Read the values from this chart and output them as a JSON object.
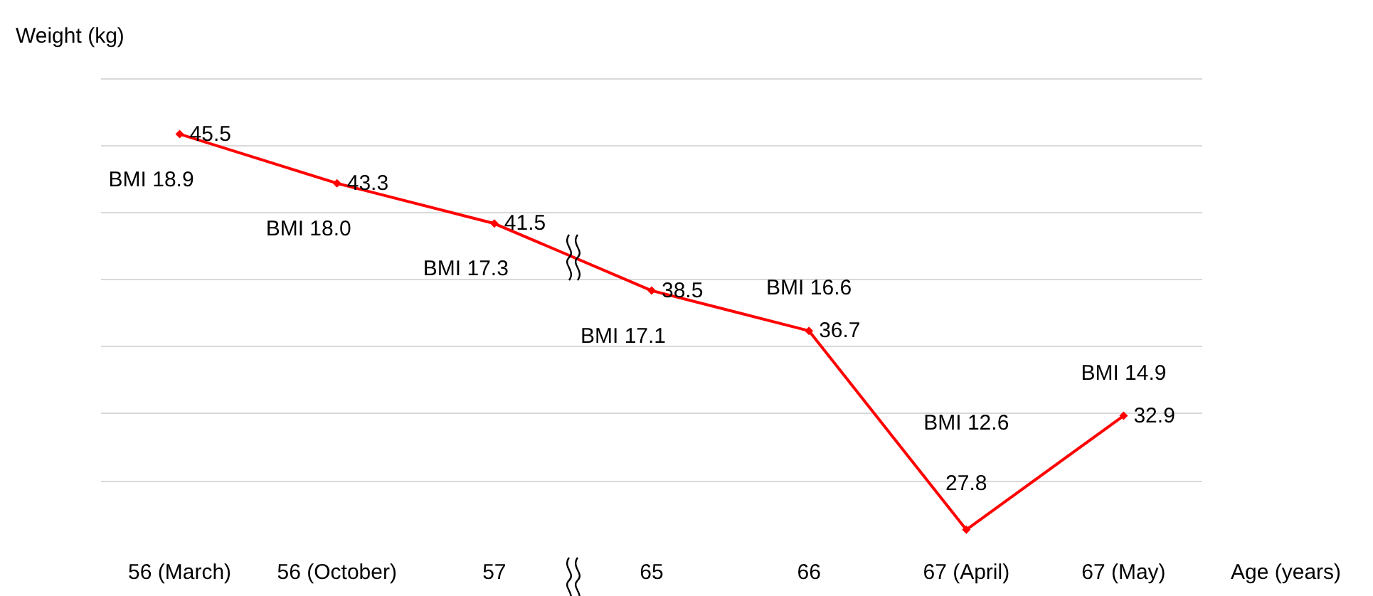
{
  "chart_data": {
    "type": "line",
    "xlabel": "Age (years)",
    "ylabel": "Weight (kg)",
    "categories": [
      "56 (March)",
      "56 (October)",
      "57",
      "65",
      "66",
      "67 (April)",
      "67 (May)"
    ],
    "series": [
      {
        "color": "#ff0000",
        "values": [
          45.5,
          43.3,
          41.5,
          38.5,
          36.7,
          27.8,
          32.9
        ]
      }
    ],
    "data_labels": true,
    "marker": "diamond",
    "line_style": "solid",
    "grid": "y",
    "tick_labels": "x",
    "annotations": [
      "BMI 18.9",
      "BMI 18.0",
      "BMI 17.3",
      "BMI 17.1",
      "BMI 16.6",
      "BMI 12.6",
      "BMI 14.9"
    ]
  }
}
